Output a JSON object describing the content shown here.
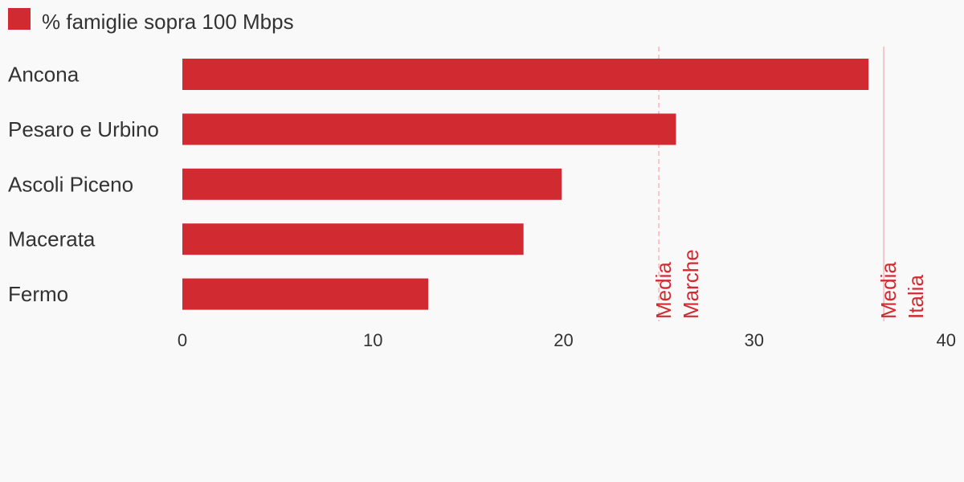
{
  "chart_data": {
    "type": "bar",
    "orientation": "horizontal",
    "categories": [
      "Ancona",
      "Pesaro e Urbino",
      "Ascoli Piceno",
      "Macerata",
      "Fermo"
    ],
    "series": [
      {
        "name": "% famiglie sopra 100 Mbps",
        "values": [
          36.0,
          25.9,
          19.9,
          17.9,
          12.9
        ],
        "color": "#d12b31"
      }
    ],
    "xlim": [
      0,
      40
    ],
    "xticks": [
      0,
      10,
      20,
      30,
      40
    ],
    "title": "",
    "xlabel": "",
    "ylabel": "",
    "grid": false,
    "legend": "top-left",
    "reference_lines": [
      {
        "label_lines": [
          "Media",
          "Marche"
        ],
        "value": 25,
        "style": "dashed",
        "color": "#f4b8bb"
      },
      {
        "label_lines": [
          "Media",
          "Italia"
        ],
        "value": 36.8,
        "style": "solid",
        "color": "#f4b8bb"
      }
    ],
    "reference_label_color": "#d12b31",
    "background": "#f9f9f9",
    "text_color": "#333333"
  }
}
